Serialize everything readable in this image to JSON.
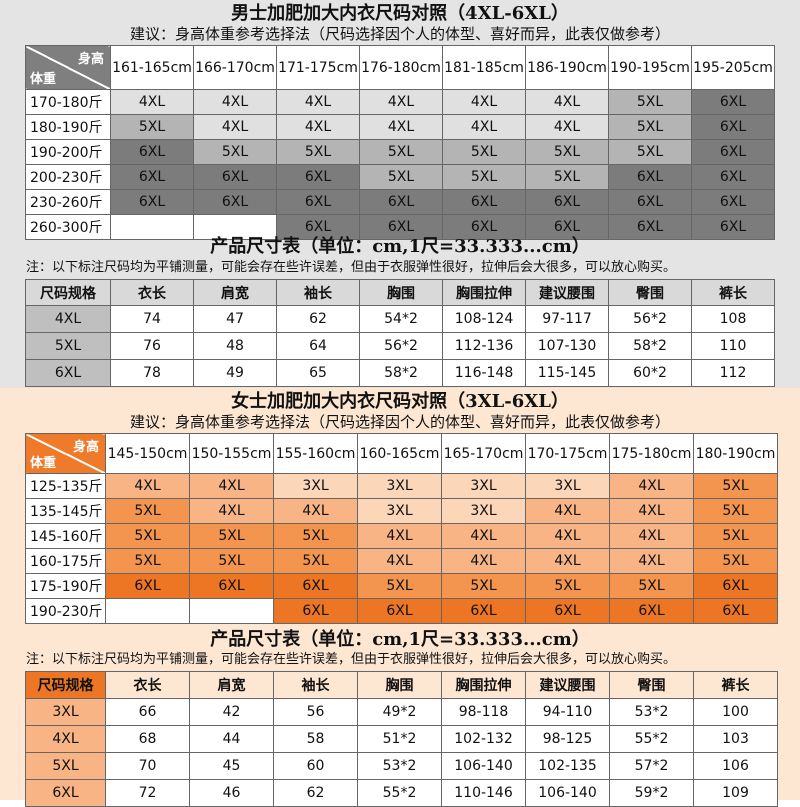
{
  "men": {
    "title": "男士加肥加大内衣尺码对照（4XL-6XL）",
    "advice": "建议：身高体重参考选择法（尺码选择因个人的体型、喜好而异，此表仅做参考）",
    "corner_height": "身高",
    "corner_weight": "体重",
    "heights": [
      "161-165cm",
      "166-170cm",
      "171-175cm",
      "176-180cm",
      "181-185cm",
      "186-190cm",
      "190-195cm",
      "195-205cm"
    ],
    "rows": [
      {
        "weight": "170-180斤",
        "sizes": [
          "4XL",
          "4XL",
          "4XL",
          "4XL",
          "4XL",
          "4XL",
          "5XL",
          "6XL"
        ]
      },
      {
        "weight": "180-190斤",
        "sizes": [
          "5XL",
          "4XL",
          "4XL",
          "4XL",
          "4XL",
          "4XL",
          "5XL",
          "6XL"
        ]
      },
      {
        "weight": "190-200斤",
        "sizes": [
          "6XL",
          "5XL",
          "5XL",
          "5XL",
          "5XL",
          "5XL",
          "5XL",
          "6XL"
        ]
      },
      {
        "weight": "200-230斤",
        "sizes": [
          "6XL",
          "6XL",
          "6XL",
          "5XL",
          "5XL",
          "5XL",
          "6XL",
          "6XL"
        ]
      },
      {
        "weight": "230-260斤",
        "sizes": [
          "6XL",
          "6XL",
          "6XL",
          "6XL",
          "6XL",
          "6XL",
          "6XL",
          "6XL"
        ]
      },
      {
        "weight": "260-300斤",
        "sizes": [
          "",
          "",
          "6XL",
          "6XL",
          "6XL",
          "6XL",
          "6XL",
          "6XL"
        ]
      }
    ],
    "size_colors": {
      "4XL": "#e0e0e0",
      "5XL": "#b4b4b4",
      "6XL": "#7c7c7c",
      "": "#ffffff"
    },
    "header_color": "#7f7f7f",
    "product_title": "产品尺寸表（单位：cm,1尺=33.333...cm）",
    "note": "注：以下标注尺码均为平铺测量，可能会存在些许误差，但由于衣服弹性很好，拉伸后会大很多，可以放心购买。",
    "columns": [
      "尺码规格",
      "衣长",
      "肩宽",
      "袖长",
      "胸围",
      "胸围拉伸",
      "建议腰围",
      "臀围",
      "裤长"
    ],
    "products": [
      {
        "size": "4XL",
        "values": [
          "74",
          "47",
          "62",
          "54*2",
          "108-124",
          "97-117",
          "56*2",
          "108"
        ]
      },
      {
        "size": "5XL",
        "values": [
          "76",
          "48",
          "64",
          "56*2",
          "112-136",
          "107-130",
          "58*2",
          "110"
        ]
      },
      {
        "size": "6XL",
        "values": [
          "78",
          "49",
          "65",
          "58*2",
          "116-148",
          "115-145",
          "60*2",
          "112"
        ]
      }
    ]
  },
  "women": {
    "title": "女士加肥加大内衣尺码对照（3XL-6XL）",
    "advice": "建议：身高体重参考选择法（尺码选择因个人的体型、喜好而异，此表仅做参考）",
    "corner_height": "身高",
    "corner_weight": "体重",
    "heights": [
      "145-150cm",
      "150-155cm",
      "155-160cm",
      "160-165cm",
      "165-170cm",
      "170-175cm",
      "175-180cm",
      "180-190cm"
    ],
    "rows": [
      {
        "weight": "125-135斤",
        "sizes": [
          "4XL",
          "4XL",
          "3XL",
          "3XL",
          "3XL",
          "3XL",
          "4XL",
          "5XL"
        ]
      },
      {
        "weight": "135-145斤",
        "sizes": [
          "5XL",
          "4XL",
          "4XL",
          "3XL",
          "3XL",
          "4XL",
          "4XL",
          "5XL"
        ]
      },
      {
        "weight": "145-160斤",
        "sizes": [
          "5XL",
          "5XL",
          "5XL",
          "4XL",
          "4XL",
          "4XL",
          "4XL",
          "5XL"
        ]
      },
      {
        "weight": "160-175斤",
        "sizes": [
          "5XL",
          "5XL",
          "5XL",
          "4XL",
          "4XL",
          "4XL",
          "4XL",
          "5XL"
        ]
      },
      {
        "weight": "175-190斤",
        "sizes": [
          "6XL",
          "6XL",
          "6XL",
          "5XL",
          "5XL",
          "5XL",
          "5XL",
          "6XL"
        ]
      },
      {
        "weight": "190-230斤",
        "sizes": [
          "",
          "",
          "6XL",
          "6XL",
          "6XL",
          "6XL",
          "6XL",
          "6XL"
        ]
      }
    ],
    "size_colors": {
      "3XL": "#fbd6b8",
      "4XL": "#f8b484",
      "5XL": "#f3954f",
      "6XL": "#ec7624",
      "": "#ffffff"
    },
    "header_color": "#ee7a2a",
    "product_title": "产品尺寸表（单位：cm,1尺=33.333...cm）",
    "note": "注：以下标注尺码均为平铺测量，可能会存在些许误差，但由于衣服弹性很好，拉伸后会大很多，可以放心购买。",
    "columns": [
      "尺码规格",
      "衣长",
      "肩宽",
      "袖长",
      "胸围",
      "胸围拉伸",
      "建议腰围",
      "臀围",
      "裤长"
    ],
    "products": [
      {
        "size": "3XL",
        "values": [
          "66",
          "42",
          "56",
          "49*2",
          "98-118",
          "94-110",
          "53*2",
          "100"
        ]
      },
      {
        "size": "4XL",
        "values": [
          "68",
          "44",
          "58",
          "51*2",
          "102-132",
          "98-125",
          "55*2",
          "103"
        ]
      },
      {
        "size": "5XL",
        "values": [
          "70",
          "45",
          "60",
          "53*2",
          "106-140",
          "102-135",
          "57*2",
          "106"
        ]
      },
      {
        "size": "6XL",
        "values": [
          "72",
          "46",
          "62",
          "55*2",
          "110-146",
          "106-140",
          "59*2",
          "109"
        ]
      }
    ],
    "product_header_color": "#ec7624",
    "product_size_color": "#f8b484"
  }
}
